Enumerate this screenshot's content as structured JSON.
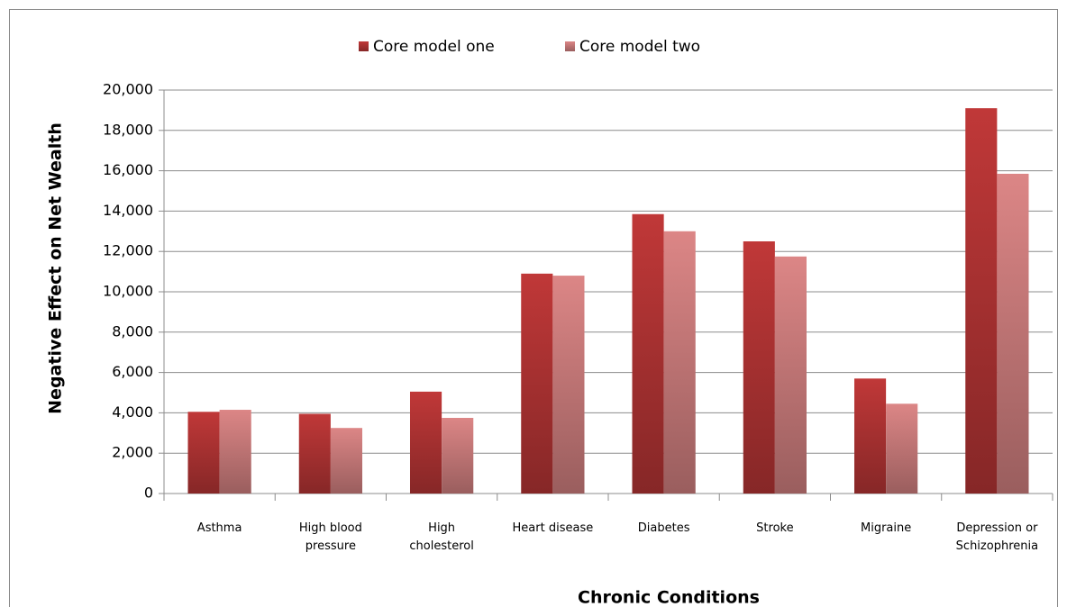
{
  "chart_data": {
    "type": "bar",
    "xlabel": "Chronic Conditions",
    "ylabel": "Negative Effect on Net Wealth",
    "categories": [
      "Asthma",
      "High blood pressure",
      "High cholesterol",
      "Heart disease",
      "Diabetes",
      "Stroke",
      "Migraine",
      "Depression or Schizophrenia"
    ],
    "series": [
      {
        "name": "Core model one",
        "color": "#c03838",
        "values": [
          4050,
          3950,
          5050,
          10900,
          13850,
          12500,
          5700,
          19100
        ]
      },
      {
        "name": "Core model two",
        "color": "#dc8686",
        "values": [
          4150,
          3250,
          3750,
          10800,
          13000,
          11750,
          4450,
          15850
        ]
      }
    ],
    "ylim": [
      0,
      20000
    ],
    "yticks": [
      0,
      {
        "value": 2000,
        "label": "2,000"
      },
      {
        "value": 4000,
        "label": "4,000"
      },
      {
        "value": 6000,
        "label": "6,000"
      },
      {
        "value": 8000,
        "label": "8,000"
      },
      {
        "value": 10000,
        "label": "10,000"
      },
      {
        "value": 12000,
        "label": "12,000"
      },
      {
        "value": 14000,
        "label": "14,000"
      },
      {
        "value": 16000,
        "label": "16,000"
      },
      {
        "value": 18000,
        "label": "18,000"
      },
      {
        "value": 20000,
        "label": "20,000"
      }
    ],
    "grid": true,
    "legend": "top"
  }
}
